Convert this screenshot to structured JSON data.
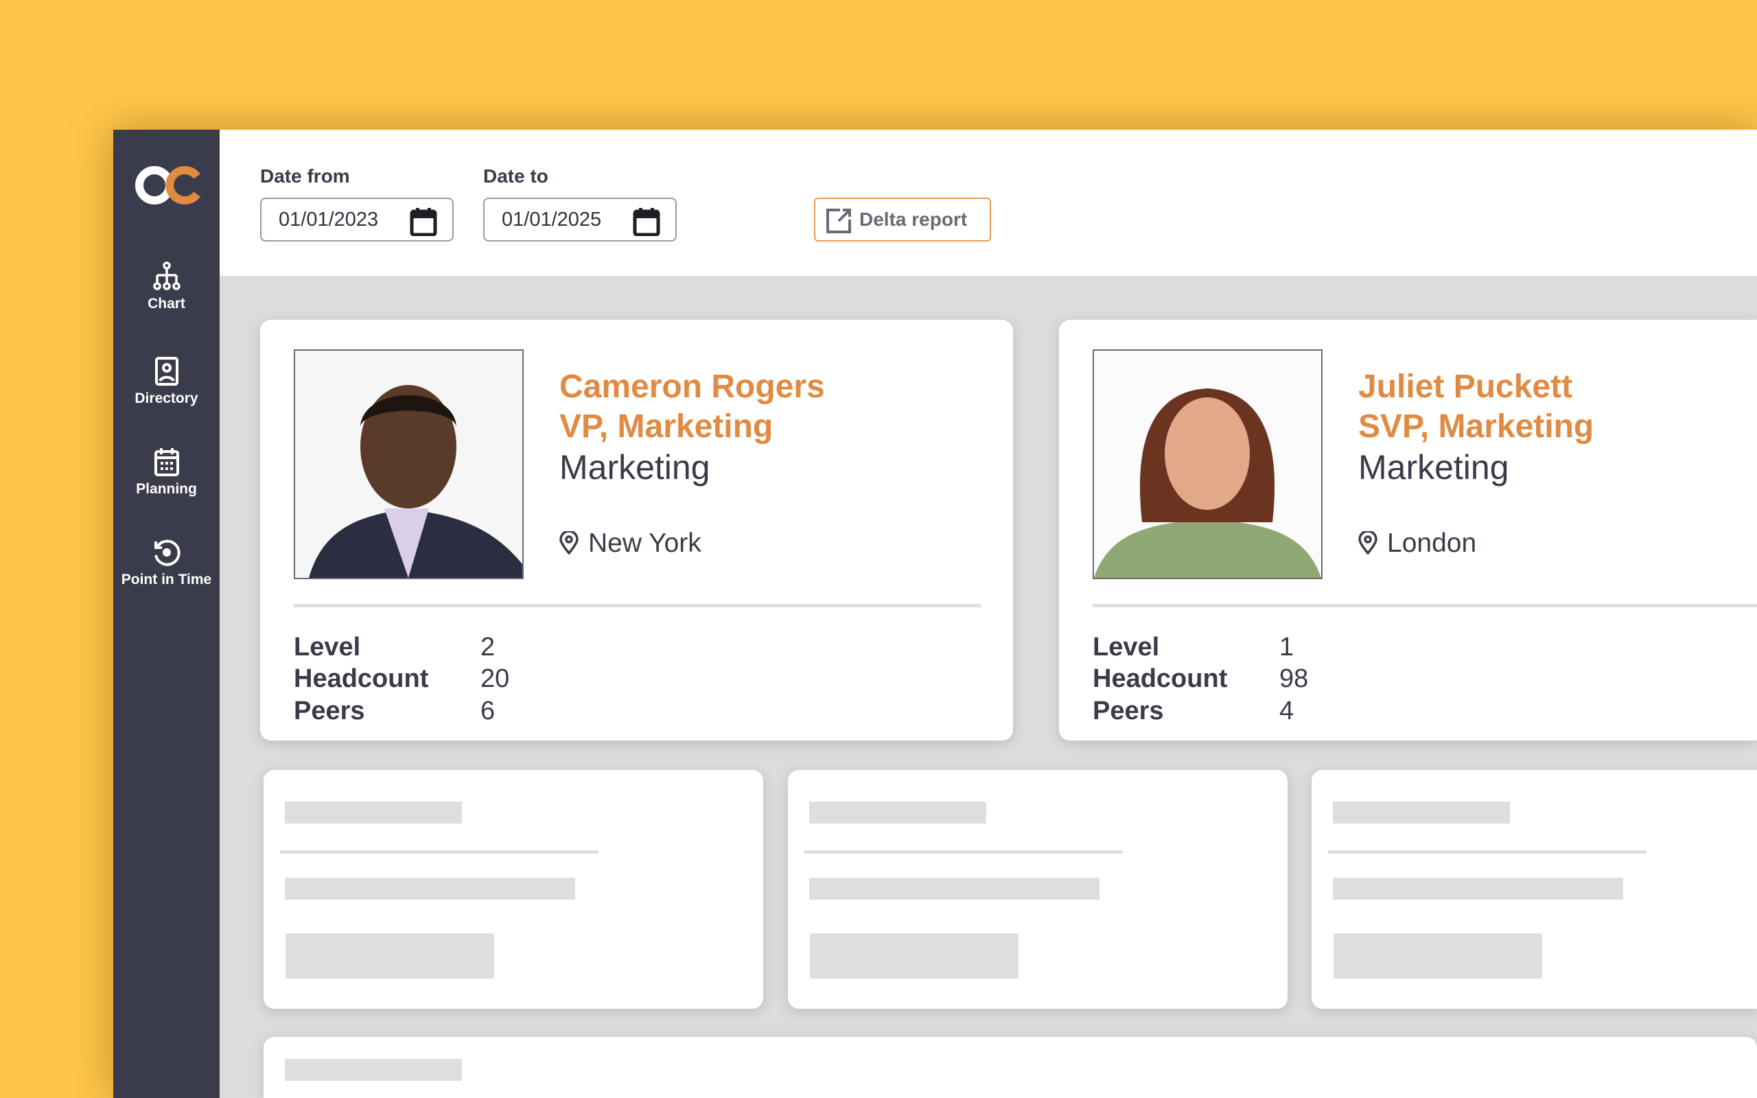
{
  "app": {
    "logo": "OC",
    "colors": {
      "background": "#FFC54A",
      "sidebar": "#3b3c4b",
      "accent": "#e08a42"
    }
  },
  "sidebar": {
    "items": [
      {
        "label": "Chart",
        "icon": "org-chart-icon"
      },
      {
        "label": "Directory",
        "icon": "directory-icon"
      },
      {
        "label": "Planning",
        "icon": "calendar-icon"
      },
      {
        "label": "Point in Time",
        "icon": "history-icon"
      }
    ]
  },
  "header": {
    "date_from": {
      "label": "Date from",
      "value": "01/01/2023"
    },
    "date_to": {
      "label": "Date to",
      "value": "01/01/2025"
    },
    "delta_report": "Delta report"
  },
  "people": [
    {
      "name": "Cameron Rogers",
      "role": "VP, Marketing",
      "department": "Marketing",
      "location": "New York",
      "stats": [
        {
          "label": "Level",
          "value": "2"
        },
        {
          "label": "Headcount",
          "value": "20"
        },
        {
          "label": "Peers",
          "value": "6"
        }
      ]
    },
    {
      "name": "Juliet Puckett",
      "role": "SVP, Marketing",
      "department": "Marketing",
      "location": "London",
      "stats": [
        {
          "label": "Level",
          "value": "1"
        },
        {
          "label": "Headcount",
          "value": "98"
        },
        {
          "label": "Peers",
          "value": "4"
        }
      ]
    }
  ]
}
